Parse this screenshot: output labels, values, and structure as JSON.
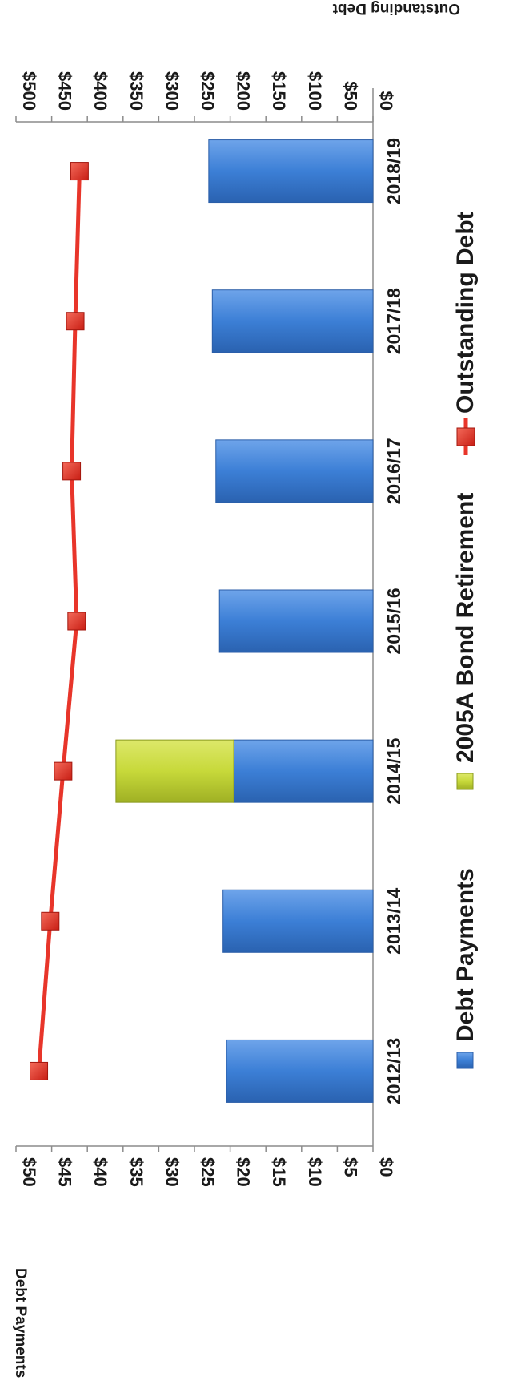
{
  "chart_data": {
    "type": "bar",
    "categories": [
      "2012/13",
      "2013/14",
      "2014/15",
      "2015/16",
      "2016/17",
      "2017/18",
      "2018/19"
    ],
    "series": [
      {
        "name": "Debt Payments",
        "kind": "bar",
        "axis": "left",
        "values": [
          20.5,
          21,
          19.5,
          21.5,
          22,
          22.5,
          23
        ],
        "color": "#3c7fd6"
      },
      {
        "name": "2005A Bond Retirement",
        "kind": "bar",
        "axis": "left",
        "values": [
          0,
          0,
          16.5,
          0,
          0,
          0,
          0
        ],
        "color": "#c7d93a"
      },
      {
        "name": "Outstanding Debt",
        "kind": "line",
        "axis": "right",
        "values": [
          468,
          452,
          434,
          415,
          422,
          417,
          411
        ],
        "color": "#e8352a"
      }
    ],
    "ylabel_left": "Debt Payments",
    "ylabel_right": "Outstanding Debt",
    "ylim_left": [
      0,
      50
    ],
    "ylim_right": [
      0,
      500
    ],
    "left_ticks": [
      "$0",
      "$5",
      "$10",
      "$15",
      "$20",
      "$25",
      "$30",
      "$35",
      "$40",
      "$45",
      "$50"
    ],
    "right_ticks": [
      "$0",
      "$50",
      "$100",
      "$150",
      "$200",
      "$250",
      "$300",
      "$350",
      "$400",
      "$450",
      "$500"
    ],
    "legend": [
      "Debt Payments",
      "2005A Bond Retirement",
      "Outstanding Debt"
    ],
    "legend_position": "bottom",
    "orientation": "rotated 90° clockwise",
    "grid": false
  }
}
